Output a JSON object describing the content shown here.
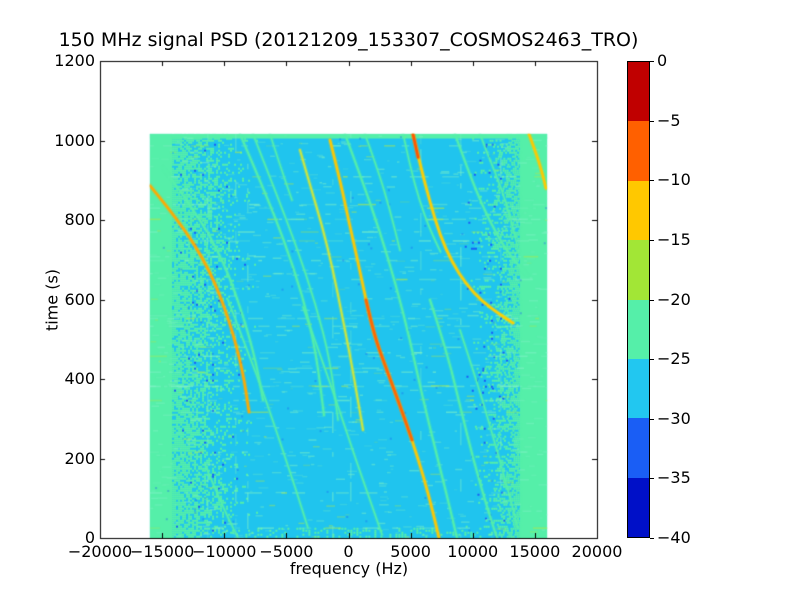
{
  "chart_data": {
    "type": "heatmap",
    "title": "150 MHz signal PSD (20121209_153307_COSMOS2463_TRO)",
    "xlabel": "frequency (Hz)",
    "ylabel": "time (s)",
    "xlim": [
      -20000,
      20000
    ],
    "ylim": [
      0,
      1200
    ],
    "grid": false,
    "x_ticks": [
      {
        "v": -20000,
        "label": "−20000"
      },
      {
        "v": -15000,
        "label": "−15000"
      },
      {
        "v": -10000,
        "label": "−10000"
      },
      {
        "v": -5000,
        "label": "−5000"
      },
      {
        "v": 0,
        "label": "0"
      },
      {
        "v": 5000,
        "label": "5000"
      },
      {
        "v": 10000,
        "label": "10000"
      },
      {
        "v": 15000,
        "label": "15000"
      },
      {
        "v": 20000,
        "label": "20000"
      }
    ],
    "y_ticks": [
      {
        "v": 0,
        "label": "0"
      },
      {
        "v": 200,
        "label": "200"
      },
      {
        "v": 400,
        "label": "400"
      },
      {
        "v": 600,
        "label": "600"
      },
      {
        "v": 800,
        "label": "800"
      },
      {
        "v": 1000,
        "label": "1000"
      },
      {
        "v": 1200,
        "label": "1200"
      }
    ],
    "colorbar": {
      "position": "right",
      "tick_labels": [
        "0",
        "−5",
        "−10",
        "−15",
        "−20",
        "−25",
        "−30",
        "−35",
        "−40"
      ],
      "bands": [
        {
          "range": [
            0,
            -5
          ],
          "color": "#c00000"
        },
        {
          "range": [
            -5,
            -10
          ],
          "color": "#ff6000"
        },
        {
          "range": [
            -10,
            -15
          ],
          "color": "#ffc800"
        },
        {
          "range": [
            -15,
            -20
          ],
          "color": "#a2e636"
        },
        {
          "range": [
            -20,
            -25
          ],
          "color": "#55efa9"
        },
        {
          "range": [
            -25,
            -30
          ],
          "color": "#22c7f0"
        },
        {
          "range": [
            -30,
            -35
          ],
          "color": "#1a5ef5"
        },
        {
          "range": [
            -35,
            -40
          ],
          "color": "#0010c8"
        }
      ]
    },
    "data_extent": {
      "freq": [
        -16000,
        16000
      ],
      "time": [
        0,
        1017
      ]
    },
    "background": {
      "main_color": "#20c4ee",
      "band_color": "#55efa9",
      "speckle_colors": [
        "#7df2c4",
        "#a8e94f"
      ],
      "blue_speck_color": "#1a5ef5"
    },
    "noise_bands": {
      "left_solid": [
        -16000,
        -14200
      ],
      "left_fade": [
        -14200,
        -8300
      ],
      "right_fade": [
        10580,
        13800
      ],
      "right_solid": [
        13800,
        16000
      ],
      "top_strip": [
        1005,
        1017
      ]
    },
    "vertical_lines": [
      -11387,
      -9134,
      -8169,
      -1328,
      121,
      5754,
      8973,
      12192
    ],
    "traces": [
      {
        "color": "#ffaa00",
        "width": 2.5,
        "points": [
          [
            -15975,
            886
          ],
          [
            -13560,
            795
          ],
          [
            -11146,
            674
          ],
          [
            -9537,
            543
          ],
          [
            -8491,
            418
          ],
          [
            -8008,
            317
          ]
        ]
      },
      {
        "color": "#55efa9",
        "width": 2.0,
        "points": [
          [
            -14929,
            931
          ],
          [
            -12273,
            820
          ],
          [
            -10019,
            694
          ],
          [
            -8490,
            561
          ],
          [
            -7444,
            443
          ],
          [
            -6881,
            347
          ]
        ]
      },
      {
        "color": "#55efa9",
        "width": 2.0,
        "points": [
          [
            -8732,
            1016
          ],
          [
            -6962,
            888
          ],
          [
            -5191,
            750
          ],
          [
            -3662,
            606
          ],
          [
            -2615,
            468
          ],
          [
            -1972,
            309
          ]
        ]
      },
      {
        "color": "#55efa9",
        "width": 1.5,
        "points": [
          [
            -7686,
            1016
          ],
          [
            -5915,
            875
          ],
          [
            -4145,
            730
          ],
          [
            -2615,
            586
          ],
          [
            -1489,
            448
          ],
          [
            -845,
            297
          ]
        ]
      },
      {
        "color": "#cde63c",
        "width": 2.0,
        "points": [
          [
            -3903,
            976
          ],
          [
            -3099,
            888
          ],
          [
            -2133,
            787
          ],
          [
            -1247,
            674
          ],
          [
            -523,
            561
          ],
          [
            121,
            460
          ],
          [
            684,
            360
          ],
          [
            1167,
            272
          ]
        ]
      },
      {
        "color": "#ffc800",
        "width": 2.5,
        "points": [
          [
            -1489,
            1001
          ],
          [
            -684,
            901
          ],
          [
            40,
            795
          ],
          [
            765,
            694
          ],
          [
            1408,
            599
          ],
          [
            2052,
            511
          ],
          [
            3018,
            428
          ],
          [
            4064,
            340
          ],
          [
            5110,
            247
          ],
          [
            6076,
            151
          ],
          [
            6800,
            65
          ],
          [
            7283,
            0
          ]
        ]
      },
      {
        "color": "#ff6400",
        "width": 2.5,
        "points": [
          [
            1408,
            599
          ],
          [
            2052,
            511
          ],
          [
            3018,
            428
          ],
          [
            4064,
            340
          ],
          [
            5110,
            247
          ]
        ]
      },
      {
        "color": "#55efa9",
        "width": 2.0,
        "points": [
          [
            -282,
            1016
          ],
          [
            1086,
            901
          ],
          [
            2535,
            770
          ],
          [
            3823,
            636
          ],
          [
            4949,
            498
          ],
          [
            5915,
            360
          ],
          [
            7042,
            216
          ],
          [
            8007,
            96
          ],
          [
            8732,
            0
          ]
        ]
      },
      {
        "color": "#ffd000",
        "width": 2.5,
        "points": [
          [
            5191,
            1016
          ],
          [
            5835,
            931
          ],
          [
            6559,
            845
          ],
          [
            7364,
            762
          ],
          [
            8329,
            694
          ],
          [
            9456,
            639
          ],
          [
            10743,
            596
          ],
          [
            12111,
            564
          ],
          [
            13238,
            541
          ]
        ]
      },
      {
        "color": "#ff5000",
        "width": 2.5,
        "points": [
          [
            5191,
            1016
          ],
          [
            5600,
            958
          ]
        ]
      },
      {
        "color": "#55efa9",
        "width": 2.0,
        "points": [
          [
            8571,
            1016
          ],
          [
            9617,
            926
          ],
          [
            10743,
            838
          ],
          [
            11950,
            762
          ],
          [
            13157,
            704
          ],
          [
            14364,
            662
          ]
        ]
      },
      {
        "color": "#ffc800",
        "width": 2.5,
        "points": [
          [
            14525,
            1016
          ],
          [
            15088,
            969
          ],
          [
            15571,
            921
          ],
          [
            15893,
            880
          ]
        ]
      },
      {
        "color": "#55efa9",
        "width": 1.5,
        "points": [
          [
            -11548,
            184
          ],
          [
            -10180,
            83
          ],
          [
            -8893,
            0
          ]
        ]
      },
      {
        "color": "#55efa9",
        "width": 1.5,
        "points": [
          [
            -9698,
            599
          ],
          [
            -8088,
            468
          ],
          [
            -6640,
            347
          ],
          [
            -5352,
            226
          ],
          [
            -4225,
            121
          ],
          [
            -3259,
            25
          ]
        ]
      },
      {
        "color": "#55efa9",
        "width": 1.5,
        "points": [
          [
            -3662,
            581
          ],
          [
            -2133,
            448
          ],
          [
            -684,
            317
          ],
          [
            603,
            196
          ],
          [
            1730,
            96
          ],
          [
            2696,
            8
          ]
        ]
      },
      {
        "color": "#55efa9",
        "width": 2.0,
        "points": [
          [
            6559,
            599
          ],
          [
            7927,
            468
          ],
          [
            9054,
            322
          ],
          [
            10100,
            191
          ],
          [
            11146,
            78
          ],
          [
            11950,
            0
          ]
        ]
      },
      {
        "color": "#55efa9",
        "width": 1.5,
        "points": [
          [
            8973,
            523
          ],
          [
            10422,
            385
          ],
          [
            11709,
            247
          ],
          [
            12835,
            121
          ],
          [
            13640,
            25
          ]
        ]
      },
      {
        "color": "#55efa9",
        "width": 1.5,
        "points": [
          [
            1328,
            1016
          ],
          [
            2374,
            926
          ],
          [
            3340,
            825
          ],
          [
            4145,
            724
          ]
        ]
      },
      {
        "color": "#55efa9",
        "width": 1.5,
        "points": [
          [
            -6318,
            1016
          ],
          [
            -5513,
            938
          ],
          [
            -4547,
            850
          ]
        ]
      },
      {
        "color": "#55efa9",
        "width": 1.5,
        "points": [
          [
            4400,
            1016
          ],
          [
            5000,
            930
          ],
          [
            5700,
            850
          ],
          [
            6500,
            780
          ],
          [
            7400,
            720
          ]
        ]
      },
      {
        "color": "#55efa9",
        "width": 1.5,
        "points": [
          [
            10580,
            1016
          ],
          [
            11400,
            950
          ],
          [
            12300,
            880
          ],
          [
            13100,
            800
          ],
          [
            13700,
            720
          ]
        ]
      }
    ]
  }
}
